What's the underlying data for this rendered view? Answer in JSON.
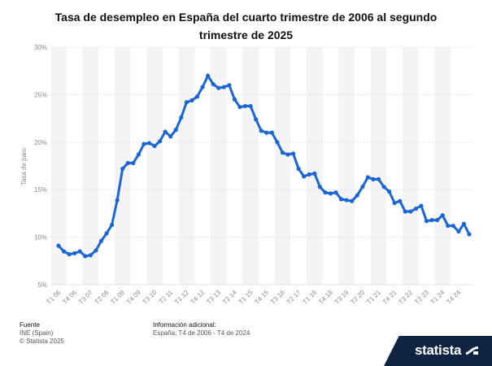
{
  "title": "Tasa de desempleo en España del cuarto trimestre de 2006 al segundo trimestre de 2025",
  "footer": {
    "source_label": "Fuente",
    "source_line1": "INE (Spain)",
    "source_line2": "© Statista 2025",
    "info_label": "Información adicional:",
    "info_text": "España; T4 de 2006 - T4 de 2024"
  },
  "brand": {
    "name": "statista",
    "logo_icon": "statista-wave-icon"
  },
  "colors": {
    "line": "#1a66d6",
    "band": "#f4f4f6",
    "grid": "#dcdcdc",
    "tick": "#8a8a8a"
  },
  "chart_data": {
    "type": "line",
    "ylabel": "Tasa de paro",
    "ylim": [
      5,
      30
    ],
    "y_ticks": [
      "5%",
      "10%",
      "15%",
      "20%",
      "25%",
      "30%"
    ],
    "grid": true,
    "x_tick_labels": [
      "T1 06",
      "T4 06",
      "T3 07",
      "T2 08",
      "T1 09",
      "T4 09",
      "T3 10",
      "T2 11",
      "T1 12",
      "T4 12",
      "T3 13",
      "T2 14",
      "T1 15",
      "T4 15",
      "T3 16",
      "T2 17",
      "T1 18",
      "T4 18",
      "T3 19",
      "T2 20",
      "T1 21",
      "T4 21",
      "T3 22",
      "T2 23",
      "T1 24",
      "T4 24"
    ],
    "values": [
      9.1,
      8.5,
      8.2,
      8.3,
      8.5,
      8.0,
      8.1,
      8.6,
      9.6,
      10.4,
      11.3,
      13.9,
      17.2,
      17.8,
      17.8,
      18.7,
      19.8,
      19.9,
      19.6,
      20.1,
      21.1,
      20.6,
      21.3,
      22.6,
      24.2,
      24.4,
      24.8,
      25.8,
      27.0,
      26.1,
      25.7,
      25.8,
      26.0,
      24.5,
      23.7,
      23.8,
      23.8,
      22.4,
      21.2,
      21.0,
      21.0,
      20.0,
      18.9,
      18.7,
      18.8,
      17.2,
      16.4,
      16.6,
      16.7,
      15.3,
      14.7,
      14.6,
      14.7,
      14.0,
      13.9,
      13.8,
      14.4,
      15.3,
      16.3,
      16.1,
      16.1,
      15.3,
      14.8,
      13.6,
      13.8,
      12.7,
      12.7,
      13.0,
      13.3,
      11.7,
      11.8,
      11.8,
      12.3,
      11.2,
      11.2,
      10.6,
      11.4,
      10.3
    ]
  }
}
